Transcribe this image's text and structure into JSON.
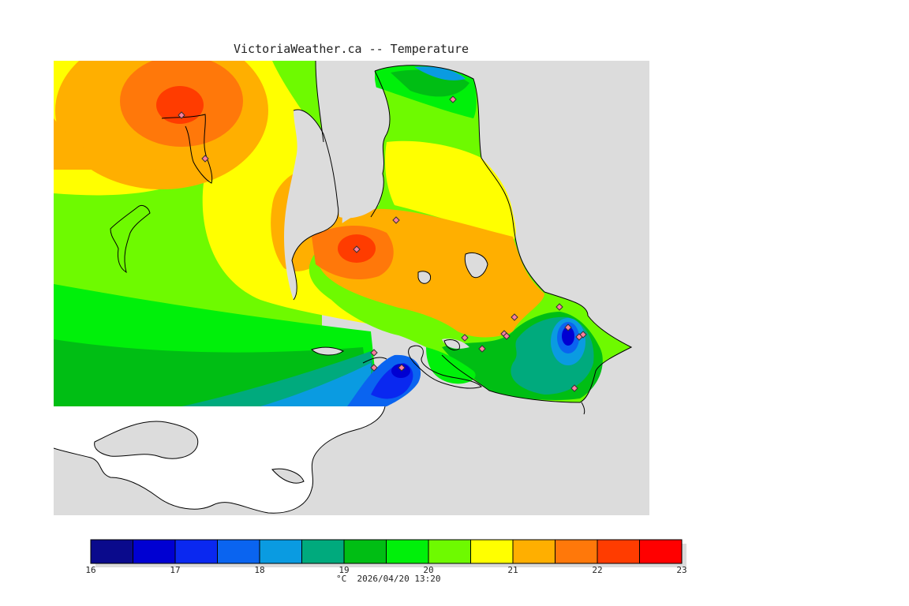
{
  "header": {
    "title": "VictoriaWeather.ca -- Temperature"
  },
  "legend": {
    "unit": "°C",
    "timestamp": "2026/04/20 13:20",
    "min": 16,
    "max": 23,
    "step": 0.5,
    "tick_labels": [
      "16",
      "17",
      "18",
      "19",
      "20",
      "21",
      "22",
      "23"
    ],
    "colors": [
      "#0a0a8c",
      "#0000d2",
      "#0a28f0",
      "#0a64f0",
      "#0a9be1",
      "#00aa7d",
      "#00be14",
      "#00f00a",
      "#6efa00",
      "#ffff00",
      "#ffaf00",
      "#ff780a",
      "#ff3c00",
      "#ff0000"
    ]
  },
  "map": {
    "background_color": "#dcdcdc",
    "land_outside_color": "#ffffff",
    "station_marker_color": "#ff7fa0"
  }
}
